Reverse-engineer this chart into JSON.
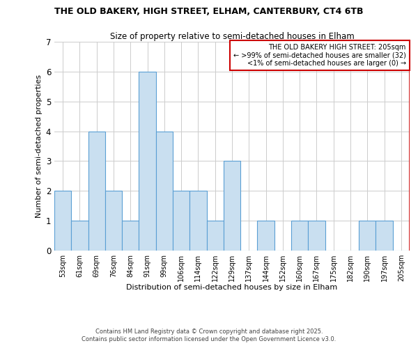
{
  "title1": "THE OLD BAKERY, HIGH STREET, ELHAM, CANTERBURY, CT4 6TB",
  "title2": "Size of property relative to semi-detached houses in Elham",
  "xlabel": "Distribution of semi-detached houses by size in Elham",
  "ylabel": "Number of semi-detached properties",
  "bar_labels": [
    "53sqm",
    "61sqm",
    "69sqm",
    "76sqm",
    "84sqm",
    "91sqm",
    "99sqm",
    "106sqm",
    "114sqm",
    "122sqm",
    "129sqm",
    "137sqm",
    "144sqm",
    "152sqm",
    "160sqm",
    "167sqm",
    "175sqm",
    "182sqm",
    "190sqm",
    "197sqm",
    "205sqm"
  ],
  "bar_values": [
    2,
    1,
    4,
    2,
    1,
    6,
    4,
    2,
    2,
    1,
    3,
    0,
    1,
    0,
    1,
    1,
    0,
    0,
    1,
    1,
    0
  ],
  "bar_color": "#c9dff0",
  "bar_edge_color": "#5a9fd4",
  "highlight_line_color": "#cc0000",
  "ylim": [
    0,
    7
  ],
  "yticks": [
    0,
    1,
    2,
    3,
    4,
    5,
    6,
    7
  ],
  "legend_title": "THE OLD BAKERY HIGH STREET: 205sqm",
  "legend_line1": "← >99% of semi-detached houses are smaller (32)",
  "legend_line2": "<1% of semi-detached houses are larger (0) →",
  "legend_box_color": "#ffffff",
  "legend_box_edge_color": "#cc0000",
  "footer1": "Contains HM Land Registry data © Crown copyright and database right 2025.",
  "footer2": "Contains public sector information licensed under the Open Government Licence v3.0.",
  "background_color": "#ffffff",
  "grid_color": "#cccccc"
}
